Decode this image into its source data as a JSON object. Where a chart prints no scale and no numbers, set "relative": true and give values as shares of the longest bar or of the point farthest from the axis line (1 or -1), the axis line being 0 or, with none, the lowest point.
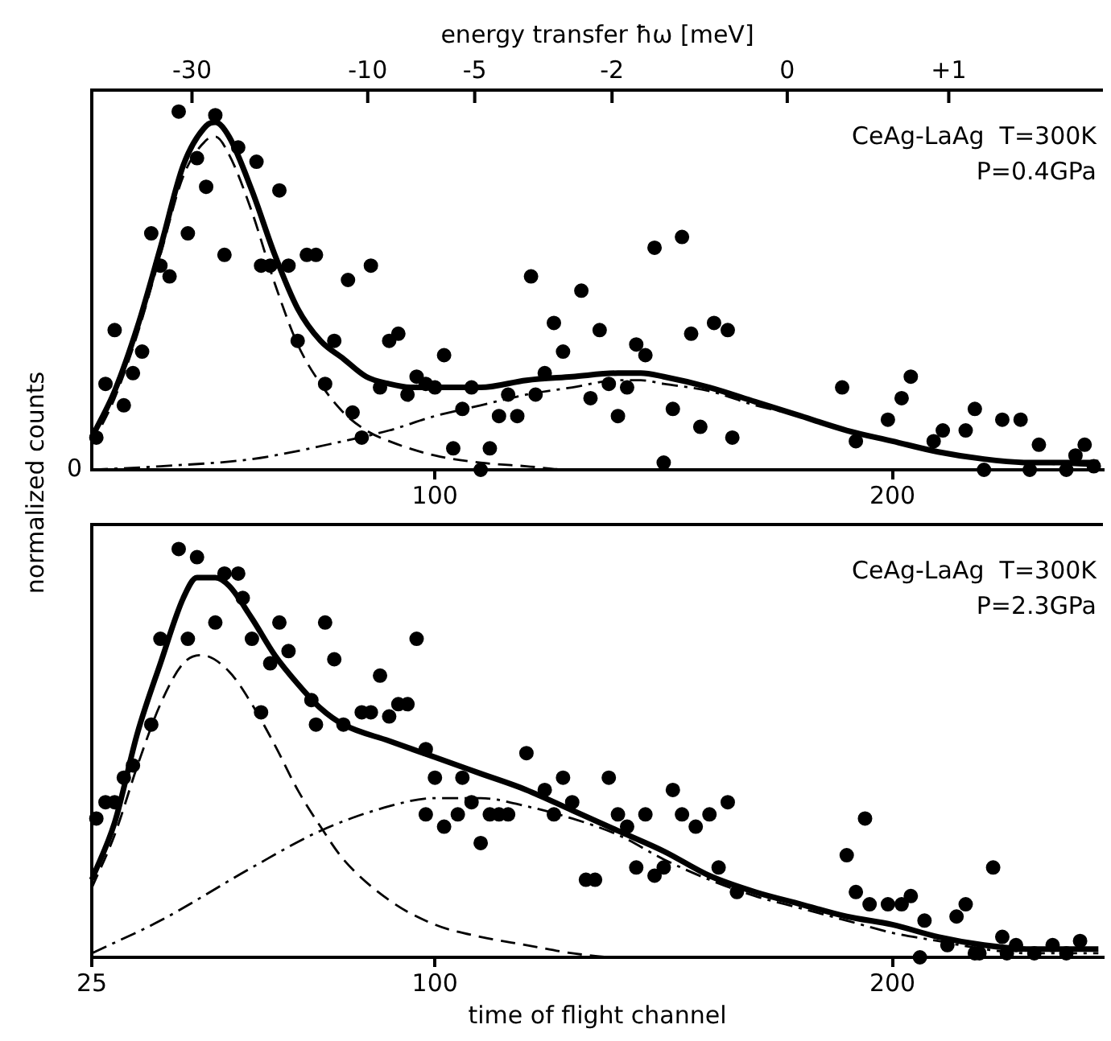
{
  "chart_data": [
    {
      "type": "scatter",
      "relative": true,
      "ylabel": "normalized counts",
      "x2label": "energy transfer ħω [meV]",
      "xlim": [
        25,
        246
      ],
      "xticks": [
        100,
        200
      ],
      "grid": false,
      "legend": false,
      "annotations": [
        "-30",
        "-10",
        "-5",
        "-2",
        "0",
        "+1",
        "CeAg-LaAg  T=300K",
        "P=0.4GPa",
        {
          "text": "0",
          "x": 25,
          "y": 0
        }
      ],
      "series": [
        {
          "marker": "circle",
          "color": "#000000",
          "x": [
            26,
            28,
            30,
            32,
            34,
            36,
            38,
            40,
            42,
            44,
            46,
            48,
            50,
            52,
            54,
            57,
            61,
            62,
            64,
            66,
            68,
            70,
            72,
            74,
            76,
            78,
            81,
            82,
            84,
            86,
            88,
            90,
            92,
            94,
            96,
            98,
            100,
            102,
            104,
            106,
            108,
            110,
            112,
            114,
            116,
            118,
            121,
            122,
            124,
            126,
            128,
            132,
            134,
            136,
            138,
            140,
            142,
            144,
            146,
            148,
            150,
            152,
            154,
            156,
            158,
            161,
            164,
            165,
            189,
            192,
            199,
            202,
            204,
            209,
            211,
            216,
            218,
            220,
            224,
            228,
            230,
            232,
            238,
            240,
            242,
            244
          ],
          "values": [
            0.09,
            0.24,
            0.39,
            0.18,
            0.27,
            0.33,
            0.66,
            0.57,
            0.54,
            1.0,
            0.66,
            0.87,
            0.79,
            0.99,
            0.6,
            0.9,
            0.86,
            0.57,
            0.57,
            0.78,
            0.57,
            0.36,
            0.6,
            0.6,
            0.24,
            0.36,
            0.53,
            0.16,
            0.09,
            0.57,
            0.23,
            0.36,
            0.38,
            0.21,
            0.26,
            0.24,
            0.23,
            0.32,
            0.06,
            0.17,
            0.23,
            0,
            0.06,
            0.15,
            0.21,
            0.15,
            0.54,
            0.21,
            0.27,
            0.41,
            0.33,
            0.5,
            0.2,
            0.39,
            0.24,
            0.15,
            0.23,
            0.35,
            0.32,
            0.62,
            0.02,
            0.17,
            0.65,
            0.38,
            0.12,
            0.41,
            0.39,
            0.09,
            0.23,
            0.08,
            0.14,
            0.2,
            0.26,
            0.08,
            0.11,
            0.11,
            0.17,
            0,
            0.14,
            0.14,
            0,
            0.07,
            0,
            0.04,
            0.07,
            0.01
          ]
        },
        {
          "type": "line",
          "marker": "none",
          "line_style": "solid",
          "color": "#000000",
          "x": [
            25,
            30,
            35,
            40,
            45,
            50,
            52,
            55,
            60,
            65,
            70,
            75,
            80,
            85,
            90,
            95,
            100,
            110,
            120,
            130,
            140,
            145,
            150,
            160,
            170,
            180,
            190,
            200,
            210,
            220,
            230,
            240,
            245
          ],
          "values": [
            0.09,
            0.22,
            0.4,
            0.62,
            0.85,
            0.96,
            0.97,
            0.93,
            0.78,
            0.6,
            0.45,
            0.36,
            0.31,
            0.26,
            0.24,
            0.23,
            0.23,
            0.23,
            0.25,
            0.26,
            0.27,
            0.27,
            0.26,
            0.23,
            0.19,
            0.15,
            0.11,
            0.08,
            0.05,
            0.03,
            0.02,
            0.02,
            0.02
          ]
        },
        {
          "type": "line",
          "marker": "none",
          "line_style": "dashed",
          "color": "#000000",
          "x": [
            25,
            30,
            35,
            40,
            45,
            50,
            52,
            55,
            60,
            65,
            70,
            75,
            80,
            85,
            90,
            100,
            110,
            120,
            130,
            140,
            245
          ],
          "values": [
            0.07,
            0.2,
            0.38,
            0.6,
            0.82,
            0.92,
            0.93,
            0.88,
            0.72,
            0.52,
            0.35,
            0.24,
            0.16,
            0.11,
            0.08,
            0.04,
            0.02,
            0.01,
            0,
            0,
            0
          ]
        },
        {
          "type": "line",
          "marker": "none",
          "line_style": "dotted",
          "color": "#000000",
          "x": [
            25,
            40,
            60,
            80,
            90,
            100,
            110,
            120,
            130,
            140,
            145,
            150,
            160,
            170,
            180,
            190,
            200,
            210,
            220,
            230,
            245
          ],
          "values": [
            0,
            0.01,
            0.03,
            0.08,
            0.11,
            0.15,
            0.18,
            0.21,
            0.23,
            0.25,
            0.25,
            0.24,
            0.22,
            0.18,
            0.15,
            0.11,
            0.08,
            0.05,
            0.03,
            0.02,
            0.01
          ]
        }
      ]
    },
    {
      "type": "scatter",
      "relative": true,
      "xlabel": "time of flight channel",
      "xlim": [
        25,
        246
      ],
      "xticks": [
        25,
        100,
        200
      ],
      "grid": false,
      "legend": false,
      "annotations": [
        "CeAg-LaAg  T=300K",
        "P=2.3GPa"
      ],
      "series": [
        {
          "marker": "circle",
          "color": "#000000",
          "x": [
            26,
            28,
            30,
            32,
            34,
            38,
            40,
            44,
            46,
            48,
            52,
            54,
            57,
            58,
            60,
            62,
            64,
            66,
            68,
            73,
            74,
            76,
            78,
            80,
            84,
            86,
            88,
            90,
            92,
            94,
            96,
            98,
            98,
            100,
            102,
            105,
            106,
            108,
            110,
            112,
            114,
            116,
            120,
            124,
            126,
            128,
            130,
            133,
            135,
            138,
            140,
            142,
            144,
            146,
            148,
            150,
            152,
            154,
            157,
            160,
            162,
            164,
            166,
            190,
            192,
            194,
            195,
            199,
            202,
            204,
            206,
            207,
            212,
            214,
            216,
            218,
            219,
            222,
            224,
            225,
            227,
            231,
            235,
            238,
            241
          ],
          "values": [
            0.34,
            0.38,
            0.38,
            0.44,
            0.47,
            0.57,
            0.78,
            1.0,
            0.78,
            0.98,
            0.82,
            0.94,
            0.94,
            0.88,
            0.78,
            0.6,
            0.72,
            0.82,
            0.75,
            0.63,
            0.57,
            0.82,
            0.73,
            0.57,
            0.6,
            0.6,
            0.69,
            0.59,
            0.62,
            0.62,
            0.78,
            0.51,
            0.35,
            0.44,
            0.32,
            0.35,
            0.44,
            0.38,
            0.28,
            0.35,
            0.35,
            0.35,
            0.5,
            0.41,
            0.35,
            0.44,
            0.38,
            0.19,
            0.19,
            0.44,
            0.35,
            0.32,
            0.22,
            0.35,
            0.2,
            0.22,
            0.41,
            0.35,
            0.32,
            0.35,
            0.22,
            0.38,
            0.16,
            0.25,
            0.16,
            0.34,
            0.13,
            0.13,
            0.13,
            0.15,
            0.0,
            0.09,
            0.03,
            0.1,
            0.13,
            0.01,
            0.01,
            0.22,
            0.05,
            0.01,
            0.03,
            0.01,
            0.03,
            0.01,
            0.04
          ]
        },
        {
          "type": "line",
          "marker": "none",
          "line_style": "solid",
          "color": "#000000",
          "x": [
            25,
            30,
            35,
            40,
            45,
            48,
            52,
            55,
            60,
            65,
            70,
            75,
            80,
            90,
            100,
            110,
            120,
            130,
            140,
            150,
            160,
            170,
            180,
            190,
            200,
            210,
            220,
            230,
            245
          ],
          "values": [
            0.19,
            0.33,
            0.55,
            0.72,
            0.88,
            0.93,
            0.93,
            0.91,
            0.83,
            0.74,
            0.67,
            0.61,
            0.57,
            0.53,
            0.49,
            0.45,
            0.41,
            0.36,
            0.31,
            0.26,
            0.2,
            0.16,
            0.13,
            0.1,
            0.08,
            0.05,
            0.03,
            0.02,
            0.02
          ]
        },
        {
          "type": "line",
          "marker": "none",
          "line_style": "dashed",
          "color": "#000000",
          "x": [
            25,
            30,
            35,
            40,
            45,
            49,
            55,
            60,
            65,
            70,
            75,
            80,
            90,
            100,
            110,
            120,
            130,
            140,
            150,
            245
          ],
          "values": [
            0.17,
            0.3,
            0.47,
            0.62,
            0.72,
            0.74,
            0.7,
            0.62,
            0.52,
            0.41,
            0.32,
            0.24,
            0.14,
            0.08,
            0.05,
            0.03,
            0.01,
            0,
            0,
            0
          ]
        },
        {
          "type": "line",
          "marker": "none",
          "line_style": "dotted",
          "color": "#000000",
          "x": [
            25,
            40,
            60,
            75,
            90,
            100,
            105,
            110,
            120,
            130,
            140,
            150,
            160,
            170,
            180,
            190,
            200,
            210,
            220,
            230,
            245
          ],
          "values": [
            0.01,
            0.09,
            0.22,
            0.31,
            0.37,
            0.39,
            0.39,
            0.39,
            0.37,
            0.34,
            0.3,
            0.24,
            0.19,
            0.15,
            0.12,
            0.09,
            0.06,
            0.04,
            0.02,
            0.01,
            0.01
          ]
        }
      ]
    }
  ]
}
